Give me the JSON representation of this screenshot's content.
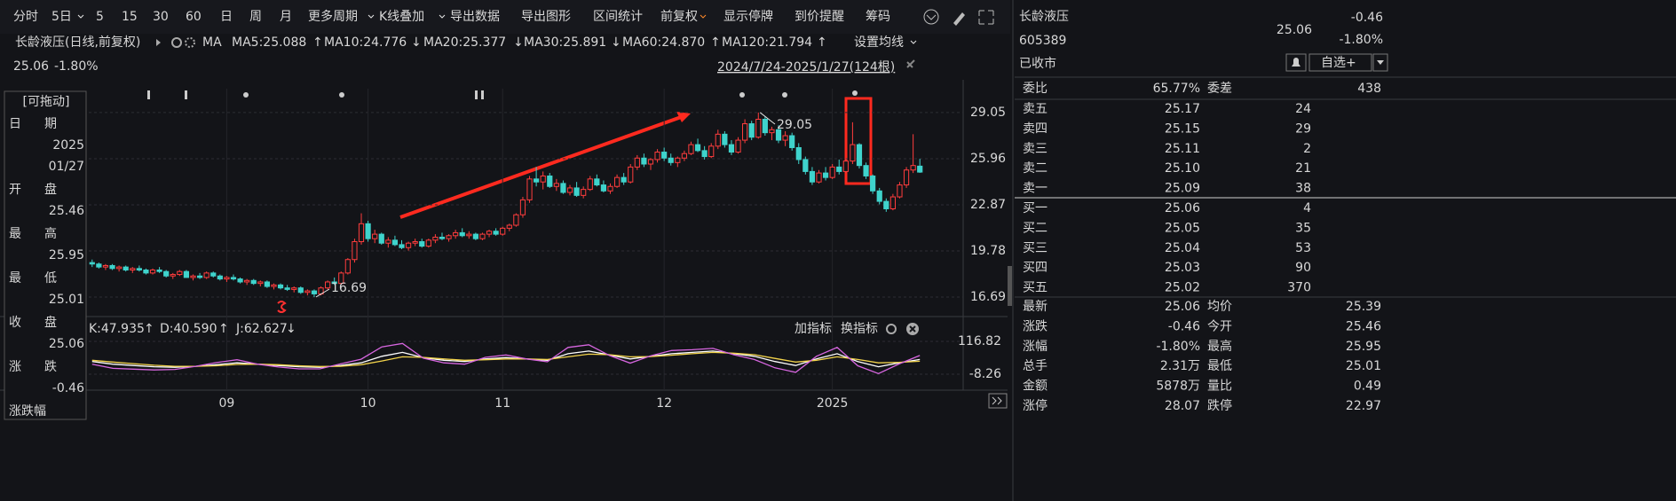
{
  "toolbar": [
    "分时",
    "5日",
    "5",
    "15",
    "30",
    "60",
    "日",
    "周",
    "月",
    "更多周期",
    "K线叠加",
    "导出数据",
    "导出图形",
    "区间统计",
    "前复权",
    "显示停牌",
    "到价提醒",
    "筹码"
  ],
  "legend": {
    "title": "长龄液压(日线,前复权)",
    "ma_label": "MA",
    "ma": [
      {
        "text": "MA5:25.088",
        "arrow": "↑",
        "color": "#ffffff"
      },
      {
        "text": "MA10:24.776",
        "arrow": "↓",
        "color": "#f2d34b"
      },
      {
        "text": "MA20:25.377",
        "arrow": "↓",
        "color": "#d766e0"
      },
      {
        "text": "MA30:25.891",
        "arrow": "↓",
        "color": "#6fcf4a"
      },
      {
        "text": "MA60:24.870",
        "arrow": "↑",
        "color": "#5fc8e6"
      },
      {
        "text": "MA120:21.794",
        "arrow": "↑",
        "color": "#f59a2d"
      }
    ],
    "settings": "设置均线",
    "price": "25.06",
    "change": "-1.80%",
    "range": "2024/7/24-2025/1/27(124根)"
  },
  "cursor_panel": {
    "title": "[可拖动]",
    "rows": [
      {
        "label": [
          "日",
          "期"
        ],
        "value": [
          "2025",
          "01/27"
        ]
      },
      {
        "label": [
          "开",
          "盘"
        ],
        "value": [
          "25.46"
        ]
      },
      {
        "label": [
          "最",
          "高"
        ],
        "value": [
          "25.95"
        ]
      },
      {
        "label": [
          "最",
          "低"
        ],
        "value": [
          "25.01"
        ]
      },
      {
        "label": [
          "收",
          "盘"
        ],
        "value": [
          "25.06"
        ]
      },
      {
        "label": [
          "涨",
          "跌"
        ],
        "value": [
          "-0.46"
        ]
      },
      {
        "label": [
          "涨跌幅"
        ],
        "value": []
      }
    ]
  },
  "quote": {
    "name": "长龄液压",
    "code": "605389",
    "price": "25.06",
    "change": "-0.46",
    "change_pct": "-1.80%",
    "status": "已收市",
    "watch": "自选+"
  },
  "order_book": {
    "ratio_label": "委比",
    "ratio": "65.77%",
    "diff_label": "委差",
    "diff": "438",
    "rows": [
      [
        "卖五",
        "25.17",
        "24"
      ],
      [
        "卖四",
        "25.15",
        "29"
      ],
      [
        "卖三",
        "25.11",
        "2"
      ],
      [
        "卖二",
        "25.10",
        "21"
      ],
      [
        "卖一",
        "25.09",
        "38"
      ],
      [
        "买一",
        "25.06",
        "4"
      ],
      [
        "买二",
        "25.05",
        "35"
      ],
      [
        "买三",
        "25.04",
        "53"
      ],
      [
        "买四",
        "25.03",
        "90"
      ],
      [
        "买五",
        "25.02",
        "370"
      ]
    ]
  },
  "stats": [
    [
      "最新",
      "25.06",
      "均价",
      "25.39"
    ],
    [
      "涨跌",
      "-0.46",
      "今开",
      "25.46"
    ],
    [
      "涨幅",
      "-1.80%",
      "最高",
      "25.95"
    ],
    [
      "总手",
      "2.31万",
      "最低",
      "25.01"
    ],
    [
      "金额",
      "5878万",
      "量比",
      "0.49"
    ],
    [
      "涨停",
      "28.07",
      "跌停",
      "22.97"
    ]
  ],
  "kdj_tools": [
    "加指标",
    "换指标"
  ],
  "chart_data": [
    {
      "type": "candlestick",
      "categories": [
        null,
        null,
        null,
        null,
        null,
        null,
        null,
        null,
        null,
        null,
        null,
        null,
        null,
        null,
        null,
        null,
        null,
        null,
        null,
        null,
        "09",
        null,
        null,
        null,
        null,
        null,
        null,
        null,
        null,
        null,
        null,
        null,
        null,
        null,
        null,
        null,
        null,
        null,
        null,
        null,
        null,
        "10",
        null,
        null,
        null,
        null,
        null,
        null,
        null,
        null,
        null,
        null,
        null,
        null,
        null,
        null,
        null,
        null,
        null,
        null,
        null,
        "11",
        null,
        null,
        null,
        null,
        null,
        null,
        null,
        null,
        null,
        null,
        null,
        null,
        null,
        null,
        null,
        null,
        null,
        null,
        null,
        null,
        null,
        null,
        null,
        "12",
        null,
        null,
        null,
        null,
        null,
        null,
        null,
        null,
        null,
        null,
        null,
        null,
        null,
        null,
        null,
        null,
        null,
        null,
        null,
        null,
        null,
        null,
        null,
        null,
        "2025",
        null,
        null,
        null,
        null,
        null,
        null,
        null,
        null,
        null,
        null,
        null,
        null,
        null
      ],
      "ohlc": [
        [
          19.0,
          19.2,
          18.7,
          18.9
        ],
        [
          18.9,
          19.0,
          18.6,
          18.7
        ],
        [
          18.7,
          18.9,
          18.5,
          18.8
        ],
        [
          18.8,
          18.9,
          18.5,
          18.6
        ],
        [
          18.6,
          18.8,
          18.4,
          18.7
        ],
        [
          18.7,
          18.8,
          18.4,
          18.5
        ],
        [
          18.5,
          18.7,
          18.3,
          18.6
        ],
        [
          18.6,
          18.8,
          18.4,
          18.5
        ],
        [
          18.5,
          18.6,
          18.2,
          18.3
        ],
        [
          18.3,
          18.6,
          18.2,
          18.5
        ],
        [
          18.5,
          18.7,
          18.3,
          18.4
        ],
        [
          18.4,
          18.5,
          18.0,
          18.1
        ],
        [
          18.1,
          18.3,
          17.9,
          18.2
        ],
        [
          18.2,
          18.5,
          18.1,
          18.4
        ],
        [
          18.4,
          18.5,
          18.0,
          18.0
        ],
        [
          18.0,
          18.2,
          17.8,
          18.1
        ],
        [
          18.1,
          18.3,
          17.9,
          18.0
        ],
        [
          18.0,
          18.4,
          17.9,
          18.3
        ],
        [
          18.3,
          18.4,
          18.0,
          18.1
        ],
        [
          18.1,
          18.2,
          17.8,
          17.9
        ],
        [
          17.9,
          18.1,
          17.7,
          18.0
        ],
        [
          18.0,
          18.2,
          17.8,
          17.9
        ],
        [
          17.9,
          18.0,
          17.6,
          17.7
        ],
        [
          17.7,
          17.9,
          17.5,
          17.8
        ],
        [
          17.8,
          17.9,
          17.5,
          17.6
        ],
        [
          17.6,
          17.8,
          17.4,
          17.7
        ],
        [
          17.7,
          17.8,
          17.3,
          17.4
        ],
        [
          17.4,
          17.6,
          17.2,
          17.5
        ],
        [
          17.5,
          17.6,
          17.2,
          17.3
        ],
        [
          17.3,
          17.5,
          17.1,
          17.2
        ],
        [
          17.2,
          17.4,
          17.0,
          17.3
        ],
        [
          17.3,
          17.4,
          16.9,
          17.0
        ],
        [
          17.0,
          17.2,
          16.8,
          17.1
        ],
        [
          17.1,
          17.2,
          16.69,
          16.9
        ],
        [
          16.9,
          17.4,
          16.8,
          17.3
        ],
        [
          17.3,
          17.8,
          17.2,
          17.7
        ],
        [
          17.7,
          18.0,
          17.5,
          17.6
        ],
        [
          17.6,
          18.4,
          17.5,
          18.3
        ],
        [
          18.3,
          19.3,
          18.2,
          19.2
        ],
        [
          19.2,
          20.6,
          19.0,
          20.4
        ],
        [
          20.4,
          22.3,
          20.2,
          21.6
        ],
        [
          21.6,
          21.8,
          20.4,
          20.6
        ],
        [
          20.6,
          21.2,
          20.3,
          20.9
        ],
        [
          20.9,
          21.0,
          20.2,
          20.3
        ],
        [
          20.3,
          20.7,
          20.0,
          20.5
        ],
        [
          20.5,
          20.8,
          20.1,
          20.2
        ],
        [
          20.2,
          20.5,
          19.9,
          20.0
        ],
        [
          20.0,
          20.4,
          19.8,
          20.3
        ],
        [
          20.3,
          20.6,
          20.1,
          20.4
        ],
        [
          20.4,
          20.6,
          20.0,
          20.1
        ],
        [
          20.1,
          20.6,
          20.0,
          20.5
        ],
        [
          20.5,
          20.9,
          20.3,
          20.7
        ],
        [
          20.7,
          21.0,
          20.5,
          20.6
        ],
        [
          20.6,
          20.9,
          20.4,
          20.8
        ],
        [
          20.8,
          21.2,
          20.6,
          21.0
        ],
        [
          21.0,
          21.3,
          20.7,
          20.8
        ],
        [
          20.8,
          21.1,
          20.6,
          20.9
        ],
        [
          20.9,
          21.0,
          20.5,
          20.6
        ],
        [
          20.6,
          21.0,
          20.5,
          20.9
        ],
        [
          20.9,
          21.2,
          20.7,
          21.1
        ],
        [
          21.1,
          21.3,
          20.8,
          20.9
        ],
        [
          20.9,
          21.4,
          20.8,
          21.3
        ],
        [
          21.3,
          21.6,
          21.1,
          21.5
        ],
        [
          21.5,
          22.3,
          21.4,
          22.2
        ],
        [
          22.2,
          23.4,
          22.0,
          23.2
        ],
        [
          23.2,
          24.8,
          23.0,
          24.6
        ],
        [
          24.6,
          25.4,
          24.1,
          24.4
        ],
        [
          24.4,
          25.1,
          23.9,
          24.8
        ],
        [
          24.8,
          25.0,
          24.0,
          24.1
        ],
        [
          24.1,
          24.6,
          23.8,
          24.3
        ],
        [
          24.3,
          24.5,
          23.6,
          23.7
        ],
        [
          23.7,
          24.2,
          23.5,
          24.0
        ],
        [
          24.0,
          24.4,
          23.4,
          23.5
        ],
        [
          23.5,
          24.1,
          23.3,
          23.9
        ],
        [
          23.9,
          24.8,
          23.8,
          24.6
        ],
        [
          24.6,
          24.9,
          24.1,
          24.2
        ],
        [
          24.2,
          24.5,
          23.7,
          23.8
        ],
        [
          23.8,
          24.3,
          23.6,
          24.1
        ],
        [
          24.1,
          24.9,
          24.0,
          24.7
        ],
        [
          24.7,
          25.0,
          24.2,
          24.4
        ],
        [
          24.4,
          25.6,
          24.3,
          25.4
        ],
        [
          25.4,
          26.2,
          25.2,
          26.0
        ],
        [
          26.0,
          26.3,
          25.4,
          25.6
        ],
        [
          25.6,
          26.0,
          25.2,
          25.9
        ],
        [
          25.9,
          26.6,
          25.7,
          26.4
        ],
        [
          26.4,
          26.7,
          25.8,
          26.0
        ],
        [
          26.0,
          26.3,
          25.5,
          25.7
        ],
        [
          25.7,
          26.1,
          25.4,
          26.0
        ],
        [
          26.0,
          26.5,
          25.8,
          26.3
        ],
        [
          26.3,
          27.1,
          26.2,
          26.9
        ],
        [
          26.9,
          27.3,
          26.4,
          26.5
        ],
        [
          26.5,
          26.8,
          25.9,
          26.1
        ],
        [
          26.1,
          27.0,
          26.0,
          26.8
        ],
        [
          26.8,
          27.9,
          26.6,
          27.6
        ],
        [
          27.6,
          27.8,
          26.7,
          26.9
        ],
        [
          26.9,
          27.2,
          26.2,
          26.4
        ],
        [
          26.4,
          27.4,
          26.3,
          27.2
        ],
        [
          27.2,
          28.6,
          27.0,
          28.3
        ],
        [
          28.3,
          28.5,
          27.2,
          27.4
        ],
        [
          27.4,
          29.05,
          27.3,
          28.6
        ],
        [
          28.6,
          28.8,
          27.5,
          27.7
        ],
        [
          27.7,
          28.1,
          27.2,
          27.9
        ],
        [
          27.9,
          28.2,
          27.0,
          27.2
        ],
        [
          27.2,
          27.8,
          26.8,
          27.5
        ],
        [
          27.5,
          27.7,
          26.5,
          26.7
        ],
        [
          26.7,
          27.0,
          25.6,
          25.9
        ],
        [
          25.9,
          26.1,
          24.9,
          25.1
        ],
        [
          25.1,
          25.4,
          24.2,
          24.4
        ],
        [
          24.4,
          25.2,
          24.3,
          25.0
        ],
        [
          25.0,
          25.4,
          24.5,
          24.7
        ],
        [
          24.7,
          25.6,
          24.6,
          25.4
        ],
        [
          25.4,
          25.9,
          24.9,
          25.1
        ],
        [
          25.1,
          26.0,
          25.0,
          25.8
        ],
        [
          25.8,
          28.4,
          25.6,
          26.9
        ],
        [
          26.9,
          27.0,
          25.3,
          25.5
        ],
        [
          25.5,
          25.7,
          24.6,
          24.8
        ],
        [
          24.8,
          24.9,
          23.6,
          23.8
        ],
        [
          23.8,
          24.0,
          22.9,
          23.1
        ],
        [
          23.1,
          23.3,
          22.4,
          22.6
        ],
        [
          22.6,
          23.6,
          22.5,
          23.4
        ],
        [
          23.4,
          24.4,
          23.3,
          24.2
        ],
        [
          24.2,
          25.4,
          24.0,
          25.2
        ],
        [
          25.2,
          27.6,
          25.0,
          25.5
        ],
        [
          25.46,
          25.95,
          25.01,
          25.06
        ]
      ],
      "ylim": [
        15.5,
        30.65
      ],
      "yticks": [
        16.69,
        19.78,
        22.87,
        25.96,
        29.05
      ],
      "grid": true,
      "up_color": "#ff3d3d",
      "down_color": "#3fd3cc",
      "annotations": [
        "29.05",
        "16.69"
      ]
    },
    {
      "type": "line",
      "series": [
        {
          "name": "K:47.935",
          "arrow": "↑",
          "color": "#ffffff",
          "values": [
            40,
            30,
            25,
            20,
            18,
            22,
            28,
            35,
            30,
            25,
            20,
            18,
            25,
            35,
            60,
            75,
            55,
            45,
            40,
            50,
            55,
            50,
            45,
            70,
            80,
            65,
            50,
            60,
            70,
            75,
            80,
            70,
            60,
            40,
            25,
            50,
            70,
            40,
            20,
            35,
            48
          ]
        },
        {
          "name": "D:40.590",
          "arrow": "↑",
          "color": "#f2d34b",
          "values": [
            45,
            38,
            32,
            26,
            22,
            22,
            24,
            29,
            30,
            28,
            24,
            21,
            22,
            28,
            42,
            58,
            56,
            50,
            45,
            47,
            50,
            50,
            48,
            58,
            68,
            66,
            58,
            59,
            64,
            70,
            75,
            72,
            66,
            52,
            38,
            45,
            58,
            48,
            35,
            37,
            41
          ]
        },
        {
          "name": "J:62.627",
          "arrow": "↓",
          "color": "#d766e0",
          "values": [
            30,
            14,
            11,
            8,
            10,
            22,
            36,
            47,
            30,
            19,
            12,
            12,
            31,
            49,
            96,
            109,
            53,
            35,
            30,
            56,
            65,
            50,
            39,
            94,
            104,
            63,
            34,
            62,
            82,
            85,
            90,
            66,
            48,
            16,
            -1,
            60,
            94,
            24,
            -6,
            31,
            63
          ]
        }
      ],
      "ylim": [
        -69.1,
        194.6
      ],
      "yticks": [
        -8.26,
        116.82
      ]
    }
  ]
}
